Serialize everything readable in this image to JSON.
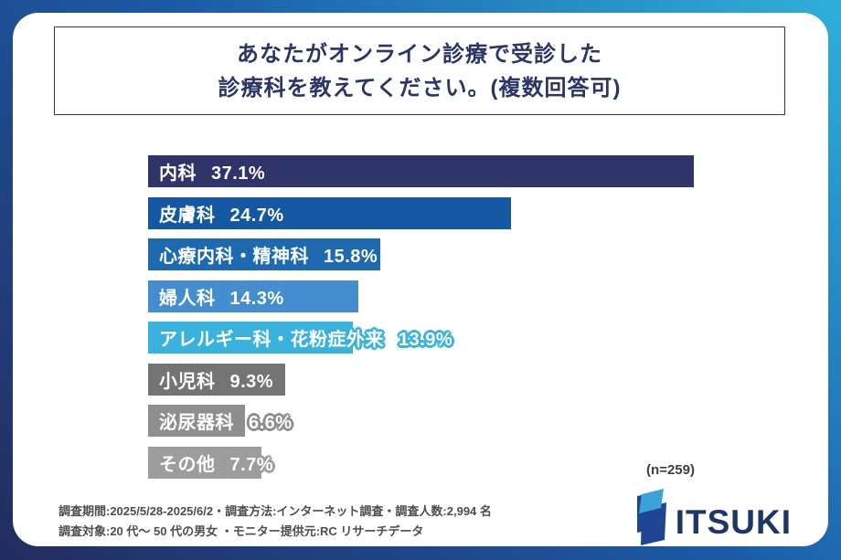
{
  "title": {
    "line1": "あなたがオンライン診療で受診した",
    "line2": "診療科を教えてください。(複数回答可)"
  },
  "chart_data": {
    "type": "bar",
    "orientation": "horizontal",
    "title": "あなたがオンライン診療で受診した診療科を教えてください。(複数回答可)",
    "unit": "%",
    "categories": [
      "内科",
      "皮膚科",
      "心療内科・精神科",
      "婦人科",
      "アレルギー科・花粉症外来",
      "小児科",
      "泌尿器科",
      "その他"
    ],
    "values": [
      37.1,
      24.7,
      15.8,
      14.3,
      13.9,
      9.3,
      6.6,
      7.7
    ],
    "value_labels": [
      "37.1%",
      "24.7%",
      "15.8%",
      "14.3%",
      "13.9%",
      "9.3%",
      "6.6%",
      "7.7%"
    ],
    "bar_colors": [
      "#2f3568",
      "#1457a3",
      "#1e6ab1",
      "#448ecf",
      "#39b3dd",
      "#747474",
      "#8e8e8e",
      "#9d9d9d"
    ],
    "xlim": [
      0,
      37.1
    ],
    "grid": false,
    "legend": false,
    "sample_note": "(n=259)"
  },
  "footer": {
    "line1": "調査期間:2025/5/28-2025/6/2・調査方法:インターネット調査・調査人数:2,994 名",
    "line2": "調査対象:20 代〜 50 代の男女 ・モニター提供元:RC リサーチデータ"
  },
  "logo": {
    "text": "ITSUKI",
    "mark_dark": "#1f4693",
    "mark_light": "#3ba3da"
  },
  "colors": {
    "background_gradient": [
      "#232c5e",
      "#1c5aa6",
      "#2fb0da"
    ],
    "card": "#ffffff",
    "title_navy": "#2b3566",
    "footer_gray": "#4d4d4d"
  }
}
